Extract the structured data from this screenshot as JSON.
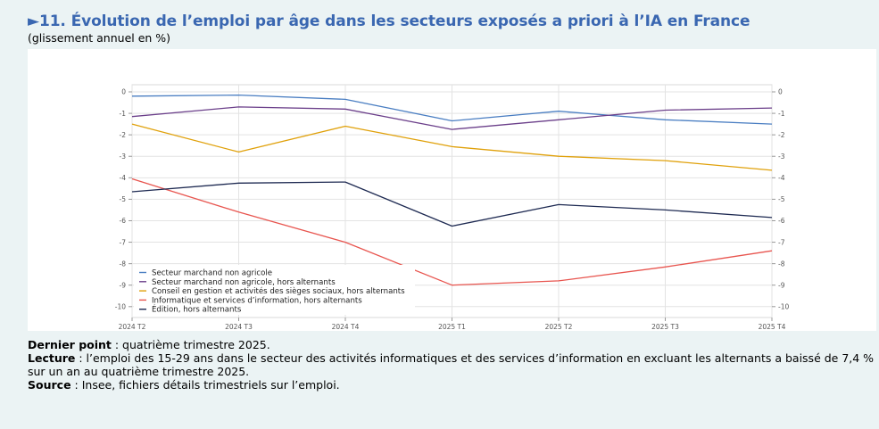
{
  "header": {
    "title": "►11. Évolution de l’emploi par âge dans les secteurs exposés a priori à l’IA en France",
    "subtitle": "(glissement annuel en %)"
  },
  "chart_data": {
    "type": "line",
    "categories": [
      "2024 T2",
      "2024 T3",
      "2024 T4",
      "2025 T1",
      "2025 T2",
      "2025 T3",
      "2025 T4"
    ],
    "ylim": [
      -10.5,
      0.2
    ],
    "yticks": [
      0,
      -1,
      -2,
      -3,
      -4,
      -5,
      -6,
      -7,
      -8,
      -9,
      -10
    ],
    "ytick_labels": [
      "0",
      "-1",
      "-2",
      "-3",
      "-4",
      "-5",
      "-6",
      "-7",
      "-8",
      "-9",
      "-10"
    ],
    "grid": true,
    "legend_position": "bottom-left",
    "series": [
      {
        "name": "Secteur marchand non agricole",
        "color": "#4a7ec2",
        "values": [
          -0.2,
          -0.15,
          -0.35,
          -1.35,
          -0.9,
          -1.3,
          -1.5
        ]
      },
      {
        "name": "Secteur marchand non agricole, hors alternants",
        "color": "#6b3f8a",
        "values": [
          -1.15,
          -0.7,
          -0.8,
          -1.75,
          -1.3,
          -0.85,
          -0.75
        ]
      },
      {
        "name": "Conseil en gestion et activités des sièges sociaux, hors alternants",
        "color": "#e0a10b",
        "values": [
          -1.5,
          -2.8,
          -1.6,
          -2.55,
          -3.0,
          -3.2,
          -3.65
        ]
      },
      {
        "name": "Informatique et services d’information, hors alternants",
        "color": "#e8554f",
        "values": [
          -4.05,
          -5.6,
          -7.0,
          -9.0,
          -8.8,
          -8.15,
          -7.4
        ]
      },
      {
        "name": "Édition, hors alternants",
        "color": "#1e2a52",
        "values": [
          -4.65,
          -4.25,
          -4.2,
          -6.25,
          -5.25,
          -5.5,
          -5.85
        ]
      }
    ]
  },
  "notes": {
    "last_point_label": "Dernier point",
    "last_point_text": " : quatrième trimestre 2025.",
    "reading_label": "Lecture",
    "reading_text": " : l’emploi des 15-29 ans dans le secteur des activités informatiques et des services d’information en excluant les alternants a baissé de 7,4 % sur un an au quatrième trimestre 2025.",
    "source_label": "Source",
    "source_text": " : Insee, fichiers détails trimestriels sur l’emploi."
  }
}
